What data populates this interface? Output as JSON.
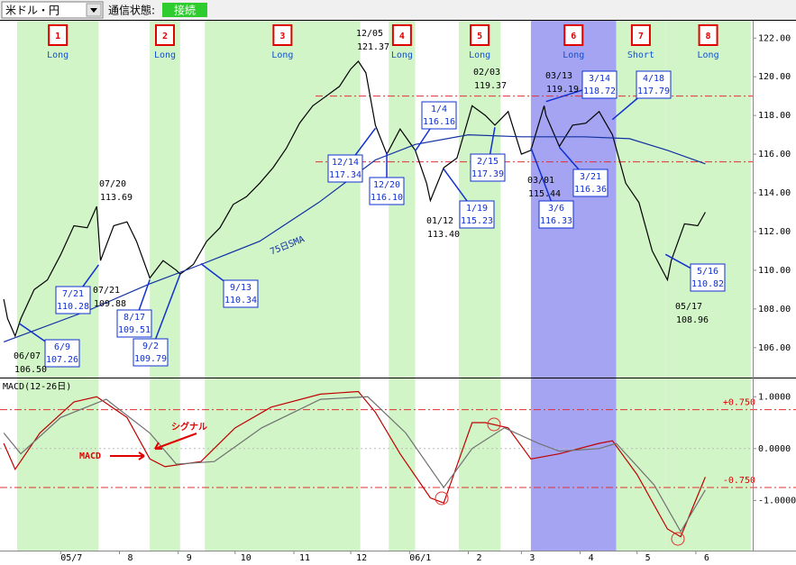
{
  "toolbar": {
    "pair": "米ドル・円",
    "status_label": "通信状態:",
    "status": "接続"
  },
  "chart_data": [
    {
      "type": "line",
      "ylim": [
        104.5,
        122.85
      ],
      "yticks": [
        {
          "value": 106,
          "label": "106.00"
        },
        {
          "value": 108,
          "label": "108.00"
        },
        {
          "value": 110,
          "label": "110.00"
        },
        {
          "value": 112,
          "label": "112.00"
        },
        {
          "value": 114,
          "label": "114.00"
        },
        {
          "value": 116,
          "label": "116.00"
        },
        {
          "value": 118,
          "label": "118.00"
        },
        {
          "value": 120,
          "label": "120.00"
        },
        {
          "value": 122,
          "label": "122.00"
        }
      ],
      "xlim": [
        "2005-05-30",
        "2006-07-01"
      ],
      "xticks": [
        {
          "value": "2005-07-01",
          "label": "05/7"
        },
        {
          "value": "2005-08-01",
          "label": "8"
        },
        {
          "value": "2005-09-01",
          "label": "9"
        },
        {
          "value": "2005-10-01",
          "label": "10"
        },
        {
          "value": "2005-11-01",
          "label": "11"
        },
        {
          "value": "2005-12-01",
          "label": "12"
        },
        {
          "value": "2006-01-01",
          "label": "06/1"
        },
        {
          "value": "2006-02-01",
          "label": "2"
        },
        {
          "value": "2006-03-01",
          "label": "3"
        },
        {
          "value": "2006-04-01",
          "label": "4"
        },
        {
          "value": "2006-05-01",
          "label": "5"
        },
        {
          "value": "2006-06-01",
          "label": "6"
        }
      ],
      "reference_lines": [
        119.0,
        115.6
      ],
      "periods": [
        {
          "number": "1",
          "label": "Long",
          "start": "2005-06-08",
          "end": "2005-07-21",
          "color": "#d2f5c8"
        },
        {
          "number": "2",
          "label": "Long",
          "start": "2005-08-17",
          "end": "2005-09-02",
          "color": "#d2f5c8"
        },
        {
          "number": "3",
          "label": "Long",
          "start": "2005-09-15",
          "end": "2005-12-06",
          "color": "#d2f5c8"
        },
        {
          "number": "4",
          "label": "Long",
          "start": "2005-12-21",
          "end": "2006-01-04",
          "color": "#d2f5c8"
        },
        {
          "number": "5",
          "label": "Long",
          "start": "2006-01-27",
          "end": "2006-02-18",
          "color": "#d2f5c8"
        },
        {
          "number": "6",
          "label": "Long",
          "start": "2006-03-06",
          "end": "2006-04-20",
          "color": "#a4a4f2"
        },
        {
          "number": "7",
          "label": "Short",
          "start": "2006-04-20",
          "end": "2006-05-16",
          "color": "#d2f5c8"
        },
        {
          "number": "8",
          "label": "Long",
          "start": "2006-05-16",
          "end": "2006-06-30",
          "color": "#d2f5c8"
        }
      ],
      "series": [
        {
          "color": "#000000",
          "x": [
            "2005-06-01",
            "2005-06-03",
            "2005-06-07",
            "2005-06-10",
            "2005-06-17",
            "2005-06-24",
            "2005-07-01",
            "2005-07-08",
            "2005-07-15",
            "2005-07-20",
            "2005-07-22",
            "2005-07-29",
            "2005-08-05",
            "2005-08-10",
            "2005-08-17",
            "2005-08-24",
            "2005-08-31",
            "2005-09-02",
            "2005-09-09",
            "2005-09-16",
            "2005-09-23",
            "2005-09-30",
            "2005-10-07",
            "2005-10-14",
            "2005-10-21",
            "2005-10-28",
            "2005-11-04",
            "2005-11-11",
            "2005-11-18",
            "2005-11-25",
            "2005-12-01",
            "2005-12-05",
            "2005-12-09",
            "2005-12-14",
            "2005-12-20",
            "2005-12-27",
            "2006-01-04",
            "2006-01-10",
            "2006-01-12",
            "2006-01-19",
            "2006-01-26",
            "2006-02-03",
            "2006-02-10",
            "2006-02-15",
            "2006-02-22",
            "2006-03-01",
            "2006-03-06",
            "2006-03-13",
            "2006-03-14",
            "2006-03-21",
            "2006-03-28",
            "2006-04-04",
            "2006-04-11",
            "2006-04-18",
            "2006-04-25",
            "2006-05-02",
            "2006-05-09",
            "2006-05-17",
            "2006-05-19",
            "2006-05-26",
            "2006-06-02",
            "2006-06-06"
          ],
          "values": [
            108.5,
            107.5,
            106.6,
            107.5,
            109.0,
            109.5,
            110.8,
            112.3,
            112.2,
            113.3,
            110.5,
            112.3,
            112.5,
            111.5,
            109.6,
            110.5,
            110.0,
            109.8,
            110.3,
            111.5,
            112.2,
            113.4,
            113.8,
            114.5,
            115.3,
            116.3,
            117.6,
            118.5,
            119.0,
            119.5,
            120.4,
            120.8,
            120.2,
            117.5,
            116.0,
            117.3,
            116.2,
            114.5,
            113.6,
            115.3,
            115.8,
            118.5,
            118.0,
            117.5,
            118.2,
            116.0,
            116.2,
            118.5,
            118.0,
            116.4,
            117.5,
            117.6,
            118.2,
            117.0,
            114.5,
            113.5,
            111.0,
            109.5,
            110.5,
            112.4,
            112.3,
            113.0
          ]
        },
        {
          "name": "75日SMA",
          "color": "#1030a0",
          "x": [
            "2005-06-01",
            "2005-07-15",
            "2005-08-17",
            "2005-09-13",
            "2005-10-14",
            "2005-11-14",
            "2005-12-14",
            "2006-01-04",
            "2006-02-01",
            "2006-03-01",
            "2006-04-03",
            "2006-04-27",
            "2006-05-17",
            "2006-06-06"
          ],
          "values": [
            106.3,
            107.9,
            109.3,
            110.3,
            111.5,
            113.5,
            115.7,
            116.5,
            117.0,
            116.9,
            116.9,
            116.8,
            116.2,
            115.5
          ]
        }
      ],
      "callouts": [
        {
          "date": "6/9",
          "x": "2005-06-09",
          "value": 107.26,
          "label": "107.26"
        },
        {
          "date": "7/21",
          "x": "2005-07-21",
          "value": 110.28,
          "label": "110.28"
        },
        {
          "date": "8/17",
          "x": "2005-08-17",
          "value": 109.51,
          "label": "109.51"
        },
        {
          "date": "9/2",
          "x": "2005-09-02",
          "value": 109.79,
          "label": "109.79"
        },
        {
          "date": "9/13",
          "x": "2005-09-13",
          "value": 110.34,
          "label": "110.34"
        },
        {
          "date": "12/14",
          "x": "2005-12-14",
          "value": 117.34,
          "label": "117.34"
        },
        {
          "date": "12/20",
          "x": "2005-12-20",
          "value": 116.1,
          "label": "116.10"
        },
        {
          "date": "1/4",
          "x": "2006-01-04",
          "value": 116.16,
          "label": "116.16"
        },
        {
          "date": "1/19",
          "x": "2006-01-19",
          "value": 115.23,
          "label": "115.23"
        },
        {
          "date": "2/15",
          "x": "2006-02-15",
          "value": 117.39,
          "label": "117.39"
        },
        {
          "date": "3/6",
          "x": "2006-03-06",
          "value": 116.33,
          "label": "116.33"
        },
        {
          "date": "3/21",
          "x": "2006-03-21",
          "value": 116.36,
          "label": "116.36"
        },
        {
          "date": "3/14",
          "x": "2006-03-14",
          "value": 118.72,
          "label": "118.72"
        },
        {
          "date": "4/18",
          "x": "2006-04-18",
          "value": 117.79,
          "label": "117.79"
        },
        {
          "date": "5/16",
          "x": "2006-05-16",
          "value": 110.82,
          "label": "110.82"
        }
      ],
      "extremes": [
        {
          "date": "07/20",
          "value": 113.69,
          "label": "113.69"
        },
        {
          "date": "07/21",
          "value": 109.88,
          "label": "109.88"
        },
        {
          "date": "06/07",
          "value": 106.5,
          "label": "106.50"
        },
        {
          "date": "12/05",
          "value": 121.37,
          "label": "121.37"
        },
        {
          "date": "01/12",
          "value": 113.4,
          "label": "113.40"
        },
        {
          "date": "02/03",
          "value": 119.37,
          "label": "119.37"
        },
        {
          "date": "03/13",
          "value": 119.19,
          "label": "119.19"
        },
        {
          "date": "03/01",
          "value": 115.44,
          "label": "115.44"
        },
        {
          "date": "05/17",
          "value": 108.96,
          "label": "108.96"
        }
      ]
    },
    {
      "type": "line",
      "title": "MACD(12-26日)",
      "ylim": [
        -1.95,
        1.3
      ],
      "yticks": [
        {
          "value": 1,
          "label": "1.0000"
        },
        {
          "value": 0,
          "label": "0.0000"
        },
        {
          "value": -1,
          "label": "-1.0000"
        }
      ],
      "levels": [
        {
          "value": 0.75,
          "label": "+0.750"
        },
        {
          "value": -0.75,
          "label": "-0.750"
        }
      ],
      "series": [
        {
          "name": "MACD",
          "color": "#c00000",
          "x": [
            "2005-06-01",
            "2005-06-07",
            "2005-06-20",
            "2005-07-08",
            "2005-07-20",
            "2005-08-05",
            "2005-08-17",
            "2005-08-25",
            "2005-09-13",
            "2005-10-01",
            "2005-10-20",
            "2005-11-15",
            "2005-12-05",
            "2005-12-14",
            "2005-12-27",
            "2006-01-12",
            "2006-01-19",
            "2006-02-03",
            "2006-02-10",
            "2006-02-22",
            "2006-03-06",
            "2006-03-21",
            "2006-04-11",
            "2006-04-18",
            "2006-05-01",
            "2006-05-17",
            "2006-05-24",
            "2006-06-06"
          ],
          "values": [
            0.1,
            -0.4,
            0.3,
            0.9,
            1.0,
            0.6,
            -0.2,
            -0.35,
            -0.25,
            0.4,
            0.8,
            1.05,
            1.1,
            0.7,
            -0.1,
            -0.95,
            -1.05,
            0.5,
            0.5,
            0.4,
            -0.2,
            -0.1,
            0.1,
            0.15,
            -0.5,
            -1.55,
            -1.7,
            -0.55
          ]
        },
        {
          "name": "シグナル",
          "color": "#707070",
          "x": [
            "2005-06-01",
            "2005-06-10",
            "2005-07-01",
            "2005-07-25",
            "2005-08-17",
            "2005-08-31",
            "2005-09-20",
            "2005-10-15",
            "2005-11-15",
            "2005-12-10",
            "2005-12-30",
            "2006-01-19",
            "2006-02-03",
            "2006-02-20",
            "2006-03-10",
            "2006-03-21",
            "2006-04-11",
            "2006-04-20",
            "2006-05-10",
            "2006-05-24",
            "2006-06-06"
          ],
          "values": [
            0.3,
            -0.1,
            0.6,
            0.95,
            0.3,
            -0.3,
            -0.25,
            0.4,
            0.95,
            1.0,
            0.3,
            -0.75,
            0.0,
            0.4,
            0.1,
            -0.05,
            0.0,
            0.1,
            -0.7,
            -1.6,
            -0.8
          ]
        }
      ]
    }
  ]
}
